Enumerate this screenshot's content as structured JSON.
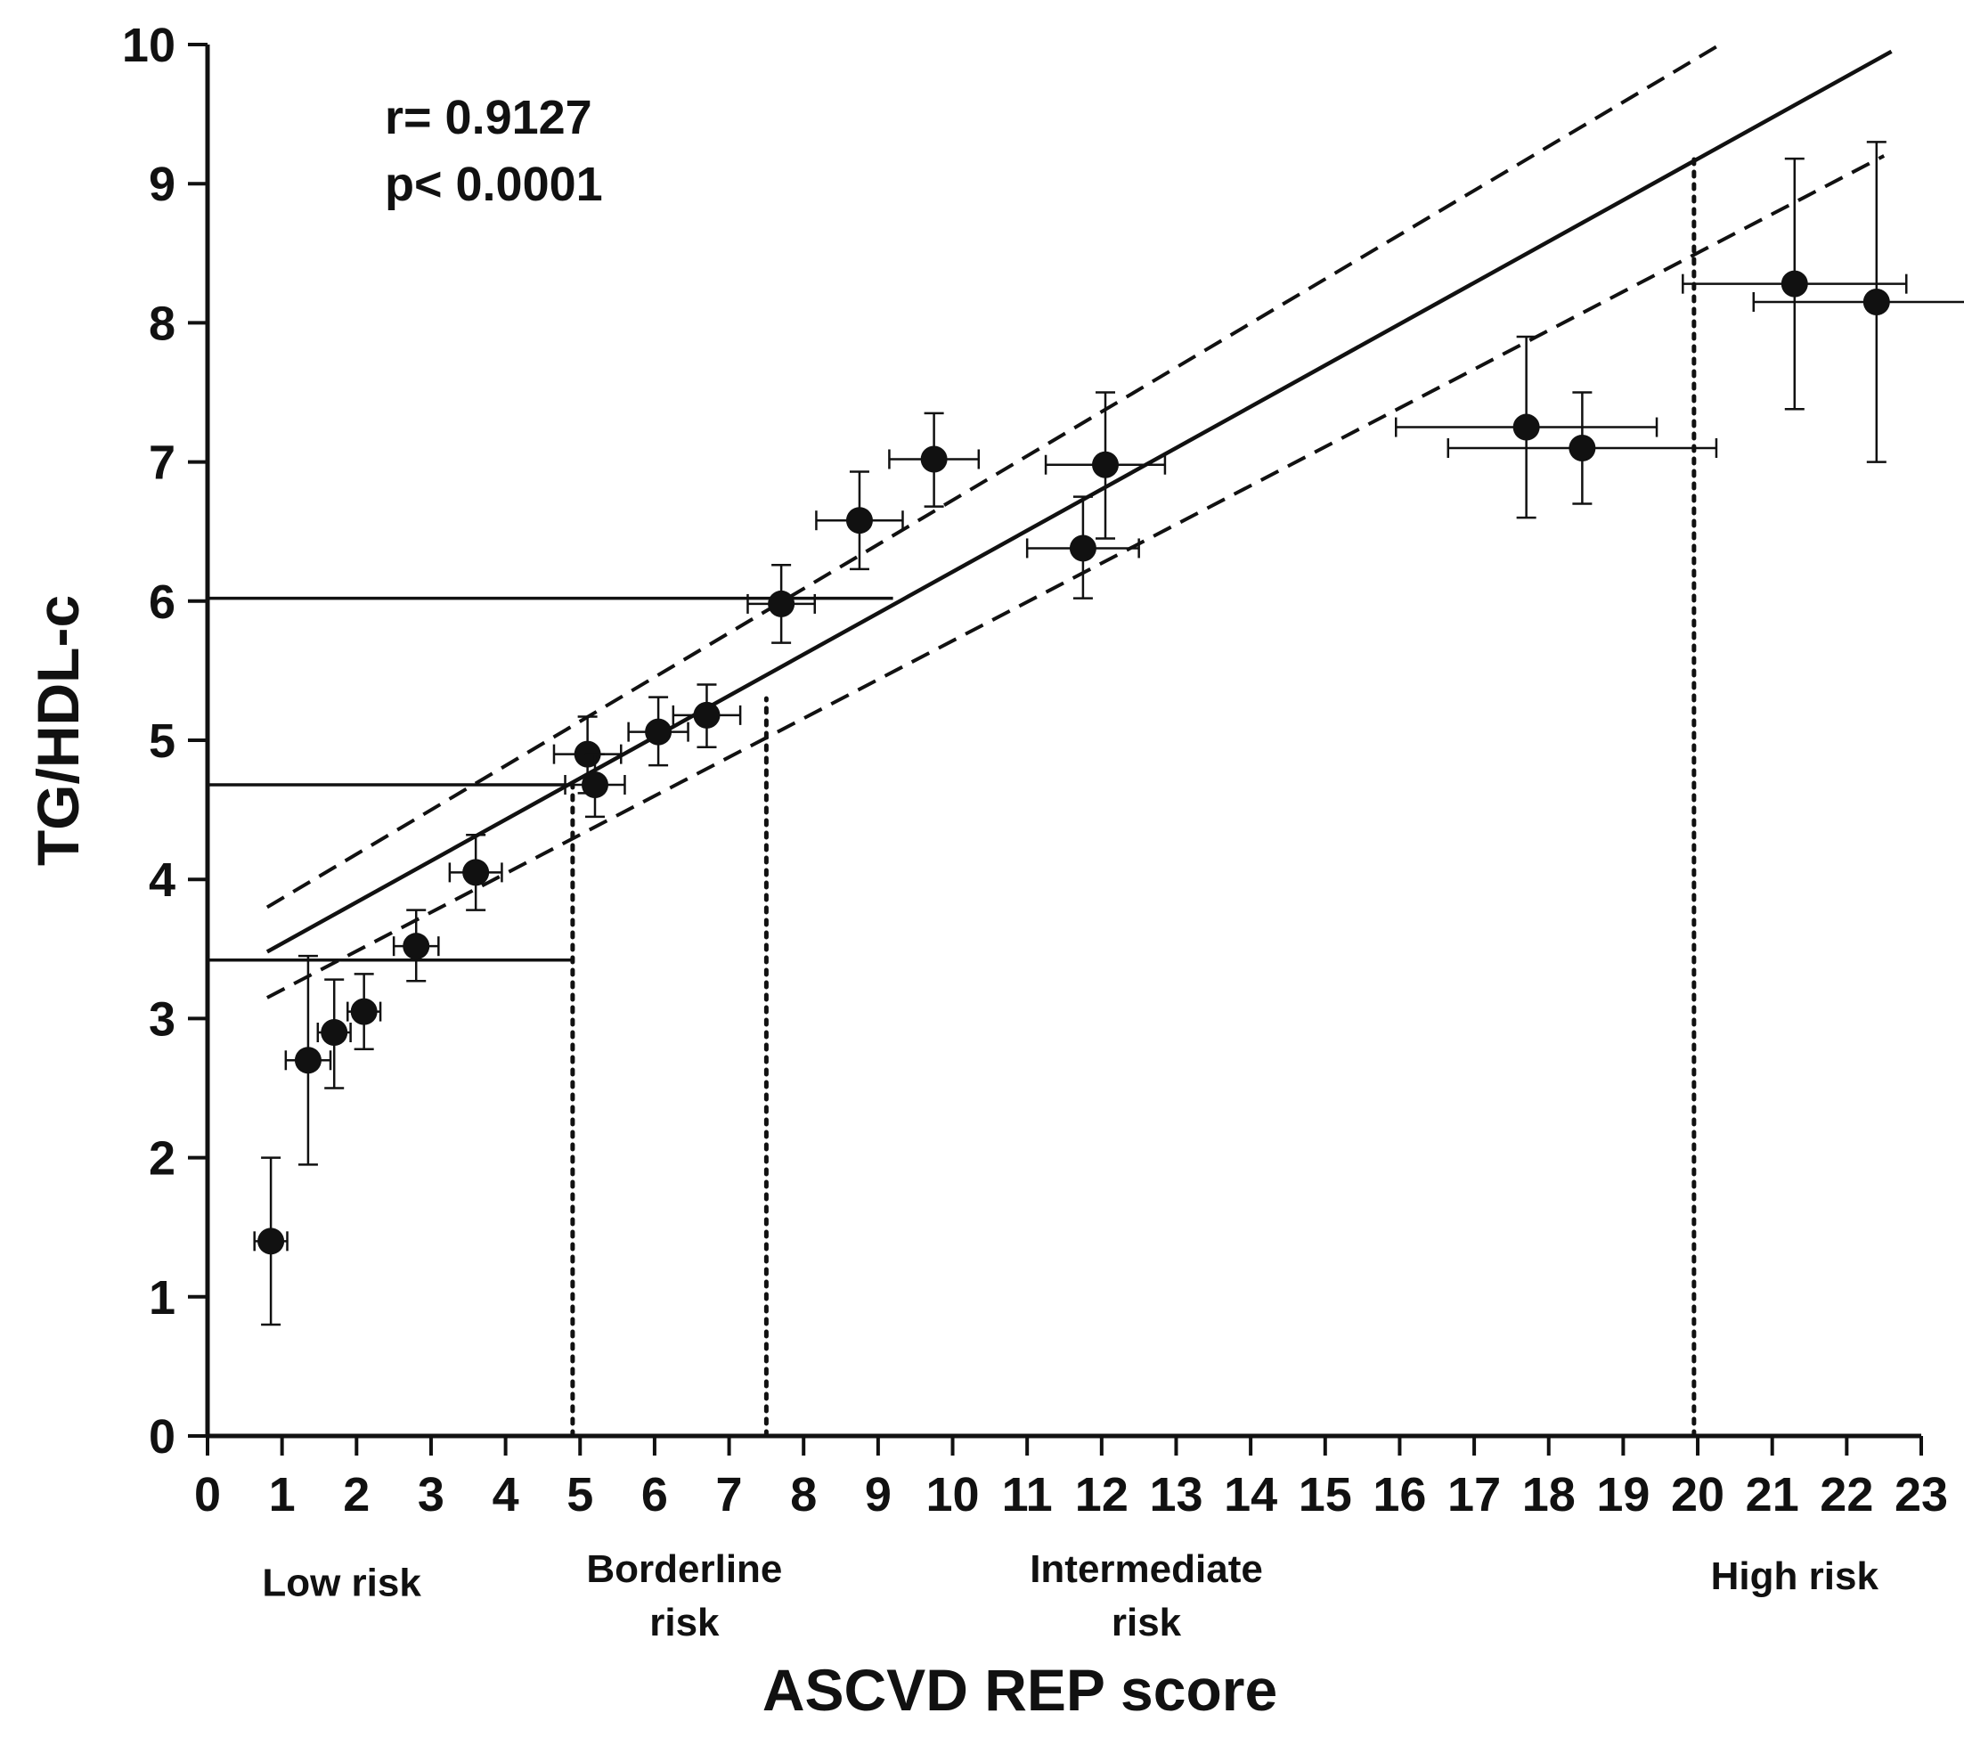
{
  "chart_data": {
    "type": "scatter",
    "title": "",
    "xlabel": "ASCVD REP score",
    "ylabel": "TG/HDL-c",
    "xlim": [
      0,
      23
    ],
    "ylim": [
      0,
      10
    ],
    "x_ticks": [
      0,
      1,
      2,
      3,
      4,
      5,
      6,
      7,
      8,
      9,
      10,
      11,
      12,
      13,
      14,
      15,
      16,
      17,
      18,
      19,
      20,
      21,
      22,
      23
    ],
    "y_ticks": [
      0,
      1,
      2,
      3,
      4,
      5,
      6,
      7,
      8,
      9,
      10
    ],
    "grid": false,
    "annotations": {
      "r": "r= 0.9127",
      "p": "p< 0.0001"
    },
    "risk_categories": [
      {
        "lines": [
          "Low risk"
        ],
        "x": 1.8,
        "y": -1.15
      },
      {
        "lines": [
          "Borderline",
          "risk"
        ],
        "x": 6.4,
        "y": -1.05
      },
      {
        "lines": [
          "Intermediate",
          "risk"
        ],
        "x": 12.6,
        "y": -1.05
      },
      {
        "lines": [
          "High risk"
        ],
        "x": 21.3,
        "y": -1.1
      }
    ],
    "regression": {
      "fit": {
        "x": [
          0.8,
          22.6
        ],
        "y": [
          3.48,
          9.95
        ]
      },
      "ci_upper": {
        "x": [
          0.8,
          20.3
        ],
        "y": [
          3.8,
          10.0
        ]
      },
      "ci_lower": {
        "x": [
          0.8,
          22.5
        ],
        "y": [
          3.15,
          9.2
        ]
      }
    },
    "threshold_lines": [
      {
        "y": 3.42,
        "x_end": 4.9,
        "x_drop": 4.9
      },
      {
        "y": 4.68,
        "x_end": 4.9
      },
      {
        "y": 6.02,
        "x_end": 9.2
      }
    ],
    "vertical_dotted": [
      {
        "x": 4.9,
        "y_top": 4.68
      },
      {
        "x": 7.5,
        "y_top": 5.3
      },
      {
        "x": 19.95,
        "y_top": 9.2
      }
    ],
    "points": [
      {
        "x": 0.85,
        "y": 1.4,
        "xerr": 0.22,
        "ylo": 0.8,
        "yhi": 2.0
      },
      {
        "x": 1.35,
        "y": 2.7,
        "xerr": 0.3,
        "ylo": 1.95,
        "yhi": 3.45
      },
      {
        "x": 1.7,
        "y": 2.9,
        "xerr": 0.22,
        "ylo": 2.5,
        "yhi": 3.28
      },
      {
        "x": 2.1,
        "y": 3.05,
        "xerr": 0.22,
        "ylo": 2.78,
        "yhi": 3.32
      },
      {
        "x": 2.8,
        "y": 3.52,
        "xerr": 0.3,
        "ylo": 3.27,
        "yhi": 3.78
      },
      {
        "x": 3.6,
        "y": 4.05,
        "xerr": 0.35,
        "ylo": 3.78,
        "yhi": 4.32
      },
      {
        "x": 5.1,
        "y": 4.9,
        "xerr": 0.45,
        "ylo": 4.62,
        "yhi": 5.17
      },
      {
        "x": 5.2,
        "y": 4.68,
        "xerr": 0.4,
        "ylo": 4.45,
        "yhi": 4.9
      },
      {
        "x": 6.05,
        "y": 5.06,
        "xerr": 0.4,
        "ylo": 4.82,
        "yhi": 5.31
      },
      {
        "x": 6.7,
        "y": 5.18,
        "xerr": 0.45,
        "ylo": 4.95,
        "yhi": 5.4
      },
      {
        "x": 7.7,
        "y": 5.98,
        "xerr": 0.45,
        "ylo": 5.7,
        "yhi": 6.26
      },
      {
        "x": 8.75,
        "y": 6.58,
        "xerr": 0.58,
        "ylo": 6.23,
        "yhi": 6.93
      },
      {
        "x": 9.75,
        "y": 7.02,
        "xerr": 0.6,
        "ylo": 6.68,
        "yhi": 7.35
      },
      {
        "x": 11.75,
        "y": 6.38,
        "xerr": 0.75,
        "ylo": 6.02,
        "yhi": 6.75
      },
      {
        "x": 12.05,
        "y": 6.98,
        "xerr": 0.8,
        "ylo": 6.45,
        "yhi": 7.5
      },
      {
        "x": 17.7,
        "y": 7.25,
        "xerr": 1.75,
        "ylo": 6.6,
        "yhi": 7.9
      },
      {
        "x": 18.45,
        "y": 7.1,
        "xerr": 1.8,
        "ylo": 6.7,
        "yhi": 7.5
      },
      {
        "x": 21.3,
        "y": 8.28,
        "xerr": 1.5,
        "ylo": 7.38,
        "yhi": 9.18
      },
      {
        "x": 22.4,
        "y": 8.15,
        "xerr": 1.65,
        "ylo": 7.0,
        "yhi": 9.3
      }
    ],
    "colors": {
      "ink": "#111111",
      "background": "#ffffff"
    }
  }
}
